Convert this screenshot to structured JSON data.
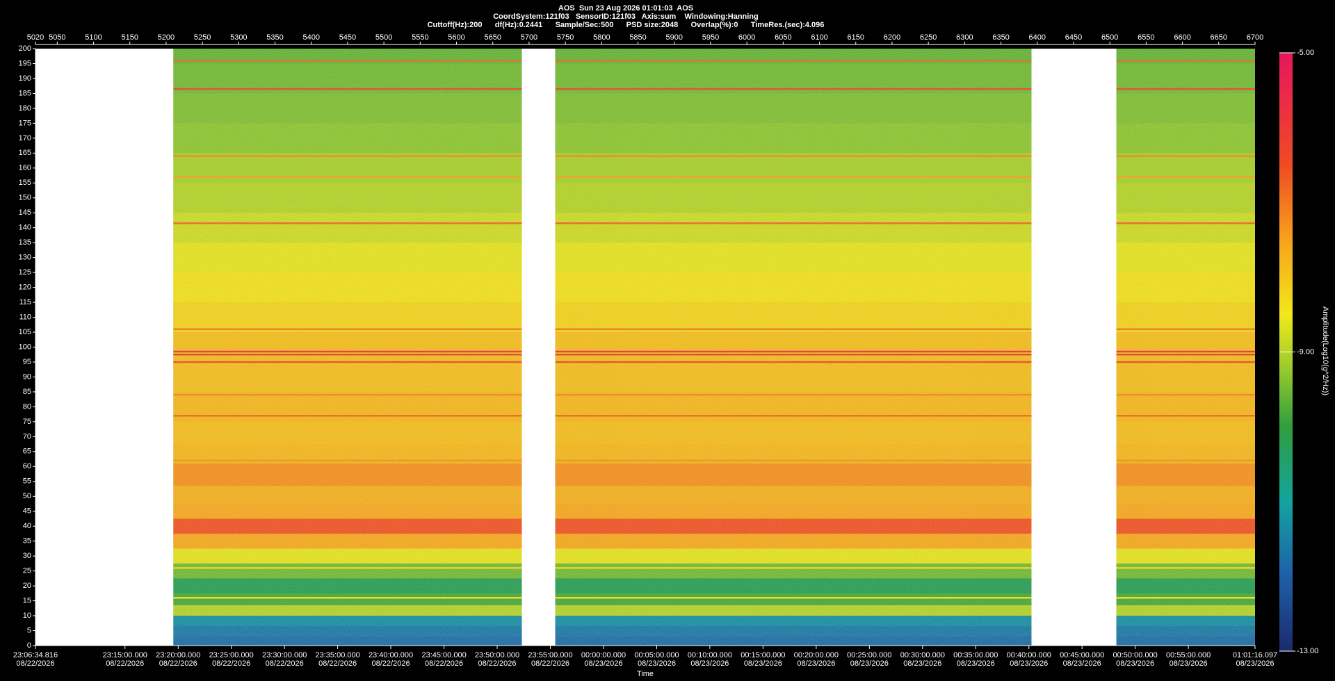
{
  "chart_data": {
    "type": "spectrogram",
    "title": "AOS  Sun 23 Aug 2026 01:01:03  AOS",
    "subtitle": "CoordSystem:121f03   SensorID:121f03   Axis:sum    Windowing:Hanning",
    "info": "Cuttoff(Hz):200      df(Hz):0.2441      Sample/Sec:500      PSD size:2048      Overlap(%):0      TimeRes.(sec):4.096",
    "x_label": "Time",
    "colorbar_label": "Amplitude(Log10(g^2/Hz))",
    "xlim": [
      5020,
      6700
    ],
    "xticks": [
      5020,
      5050,
      5100,
      5150,
      5200,
      5250,
      5300,
      5350,
      5400,
      5450,
      5500,
      5550,
      5600,
      5650,
      5700,
      5750,
      5800,
      5850,
      5900,
      5950,
      6000,
      6050,
      6100,
      6150,
      6200,
      6250,
      6300,
      6350,
      6400,
      6450,
      6500,
      6550,
      6600,
      6650,
      6700
    ],
    "x2ticks": [
      {
        "value": 5020,
        "label": "23:06:34.816"
      },
      {
        "value": 5143.3,
        "label": "23:15:00.000"
      },
      {
        "value": 5216.6,
        "label": "23:20:00.000"
      },
      {
        "value": 5289.8,
        "label": "23:25:00.000"
      },
      {
        "value": 5363.1,
        "label": "23:30:00.000"
      },
      {
        "value": 5436.3,
        "label": "23:35:00.000"
      },
      {
        "value": 5509.5,
        "label": "23:40:00.000"
      },
      {
        "value": 5582.8,
        "label": "23:45:00.000"
      },
      {
        "value": 5656.0,
        "label": "23:50:00.000"
      },
      {
        "value": 5729.3,
        "label": "23:55:00.000"
      },
      {
        "value": 5802.5,
        "label": "00:00:00.000"
      },
      {
        "value": 5875.8,
        "label": "00:05:00.000"
      },
      {
        "value": 5949.0,
        "label": "00:10:00.000"
      },
      {
        "value": 6022.2,
        "label": "00:15:00.000"
      },
      {
        "value": 6095.5,
        "label": "00:20:00.000"
      },
      {
        "value": 6168.7,
        "label": "00:25:00.000"
      },
      {
        "value": 6242.0,
        "label": "00:30:00.000"
      },
      {
        "value": 6315.2,
        "label": "00:35:00.000"
      },
      {
        "value": 6388.5,
        "label": "00:40:00.000"
      },
      {
        "value": 6461.7,
        "label": "00:45:00.000"
      },
      {
        "value": 6534.9,
        "label": "00:50:00.000"
      },
      {
        "value": 6608.2,
        "label": "00:55:00.000"
      },
      {
        "value": 6700,
        "label": "01:01:16.097"
      }
    ],
    "x2tick_dates": [
      "08/22/2026",
      "08/22/2026",
      "08/22/2026",
      "08/22/2026",
      "08/22/2026",
      "08/22/2026",
      "08/22/2026",
      "08/22/2026",
      "08/22/2026",
      "08/22/2026",
      "08/23/2026",
      "08/23/2026",
      "08/23/2026",
      "08/23/2026",
      "08/23/2026",
      "08/23/2026",
      "08/23/2026",
      "08/23/2026",
      "08/23/2026",
      "08/23/2026",
      "08/23/2026",
      "08/23/2026",
      "08/23/2026"
    ],
    "ylim": [
      0,
      200
    ],
    "yticks": [
      0,
      5,
      10,
      15,
      20,
      25,
      30,
      35,
      40,
      45,
      50,
      55,
      60,
      65,
      70,
      75,
      80,
      85,
      90,
      95,
      100,
      105,
      110,
      115,
      120,
      125,
      130,
      135,
      140,
      145,
      150,
      155,
      160,
      165,
      170,
      175,
      180,
      185,
      190,
      195,
      200
    ],
    "clim": [
      -13,
      -5
    ],
    "cticks": [
      {
        "value": -5,
        "label": "-5.00"
      },
      {
        "value": -9,
        "label": "-9.00"
      },
      {
        "value": -13,
        "label": "-13.00"
      }
    ],
    "colormap": [
      {
        "value": -13,
        "color": "#1b2a6b"
      },
      {
        "value": -12,
        "color": "#1f5fa8"
      },
      {
        "value": -11,
        "color": "#14a3a0"
      },
      {
        "value": -10,
        "color": "#2e9e3e"
      },
      {
        "value": -9.2,
        "color": "#9ccc2c"
      },
      {
        "value": -8.5,
        "color": "#f2e81a"
      },
      {
        "value": -7.5,
        "color": "#f7a21c"
      },
      {
        "value": -6.5,
        "color": "#ef4b23"
      },
      {
        "value": -5,
        "color": "#e8155e"
      }
    ],
    "segments": [
      [
        5210,
        5690
      ],
      [
        5736,
        6392
      ],
      [
        6509,
        6700
      ]
    ],
    "profile": {
      "freq": [
        200,
        190,
        180,
        170,
        160,
        150,
        140,
        130,
        120,
        110,
        100,
        90,
        80,
        70,
        65,
        57,
        50,
        45,
        40,
        35,
        30,
        25,
        20,
        15,
        12,
        8,
        5,
        1
      ],
      "amplitude": [
        -9.6,
        -9.5,
        -9.4,
        -9.3,
        -9.1,
        -9.0,
        -8.8,
        -8.6,
        -8.4,
        -8.2,
        -7.9,
        -7.9,
        -7.8,
        -7.9,
        -7.8,
        -7.3,
        -7.7,
        -7.6,
        -6.6,
        -7.6,
        -8.6,
        -9.5,
        -10.2,
        -9.8,
        -9.0,
        -11.3,
        -11.6,
        -11.8
      ]
    },
    "lines": {
      "freq": [
        196,
        186.5,
        164,
        157,
        141.5,
        106,
        98.5,
        97.5,
        95,
        84,
        77,
        62,
        26,
        16
      ],
      "amplitude": [
        -6.8,
        -6.3,
        -7.2,
        -7.5,
        -6.8,
        -7,
        -5.8,
        -6,
        -6.5,
        -7.2,
        -6.8,
        -7.3,
        -8.3,
        -8.5
      ]
    }
  }
}
